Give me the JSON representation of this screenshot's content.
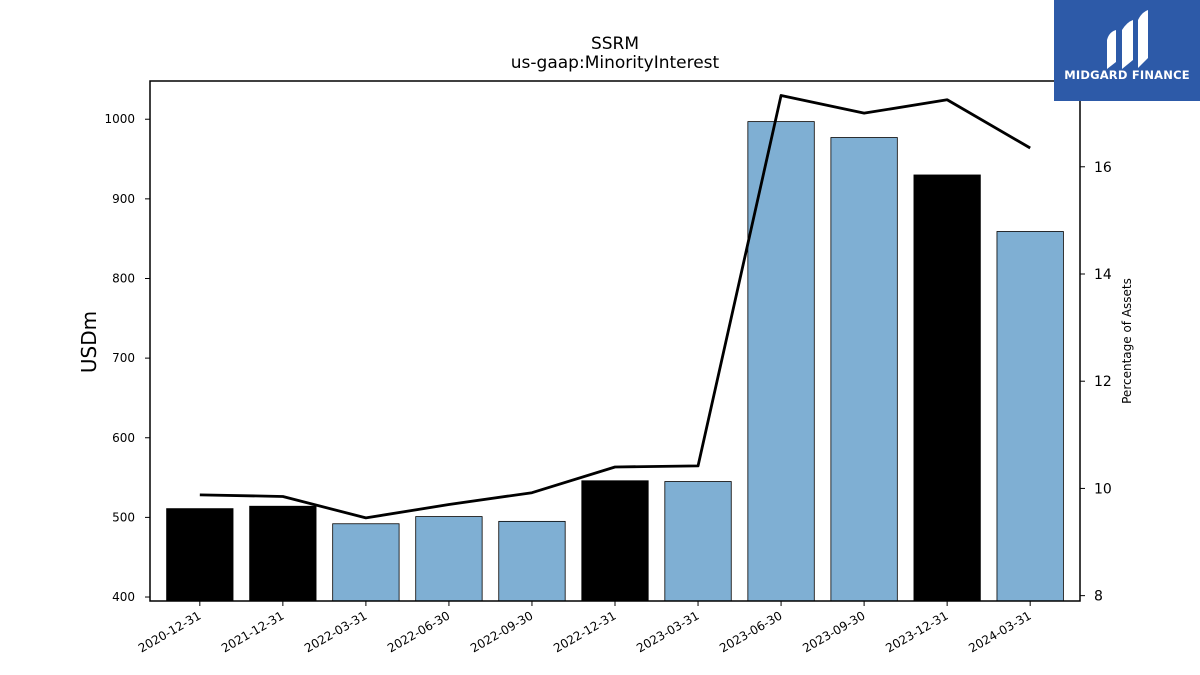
{
  "chart_data": {
    "type": "bar",
    "title": "SSRM",
    "subtitle": "us-gaap:MinorityInterest",
    "ylabel": "USDm",
    "y2label": "Percentage of Assets",
    "categories": [
      "2020-12-31",
      "2021-12-31",
      "2022-03-31",
      "2022-06-30",
      "2022-09-30",
      "2022-12-31",
      "2023-03-31",
      "2023-06-30",
      "2023-09-30",
      "2023-12-31",
      "2024-03-31"
    ],
    "values": [
      511,
      514,
      492,
      501,
      495,
      546,
      545,
      997,
      977,
      930,
      859
    ],
    "bar_colors": [
      "#000000",
      "#000000",
      "#7fafd3",
      "#7fafd3",
      "#7fafd3",
      "#000000",
      "#7fafd3",
      "#7fafd3",
      "#7fafd3",
      "#000000",
      "#7fafd3"
    ],
    "line_series": {
      "values": [
        9.88,
        9.85,
        9.45,
        9.7,
        9.92,
        10.4,
        10.42,
        17.33,
        17.0,
        17.25,
        16.35
      ],
      "color": "#000000"
    },
    "ylim": [
      395,
      1048
    ],
    "y2lim": [
      7.9,
      17.6
    ],
    "yticks": [
      400,
      500,
      600,
      700,
      800,
      900,
      1000
    ],
    "y2ticks": [
      8,
      10,
      12,
      14,
      16
    ],
    "grid": false
  },
  "logo": {
    "text": "MIDGARD FINANCE",
    "color": "#2d5aa8"
  }
}
